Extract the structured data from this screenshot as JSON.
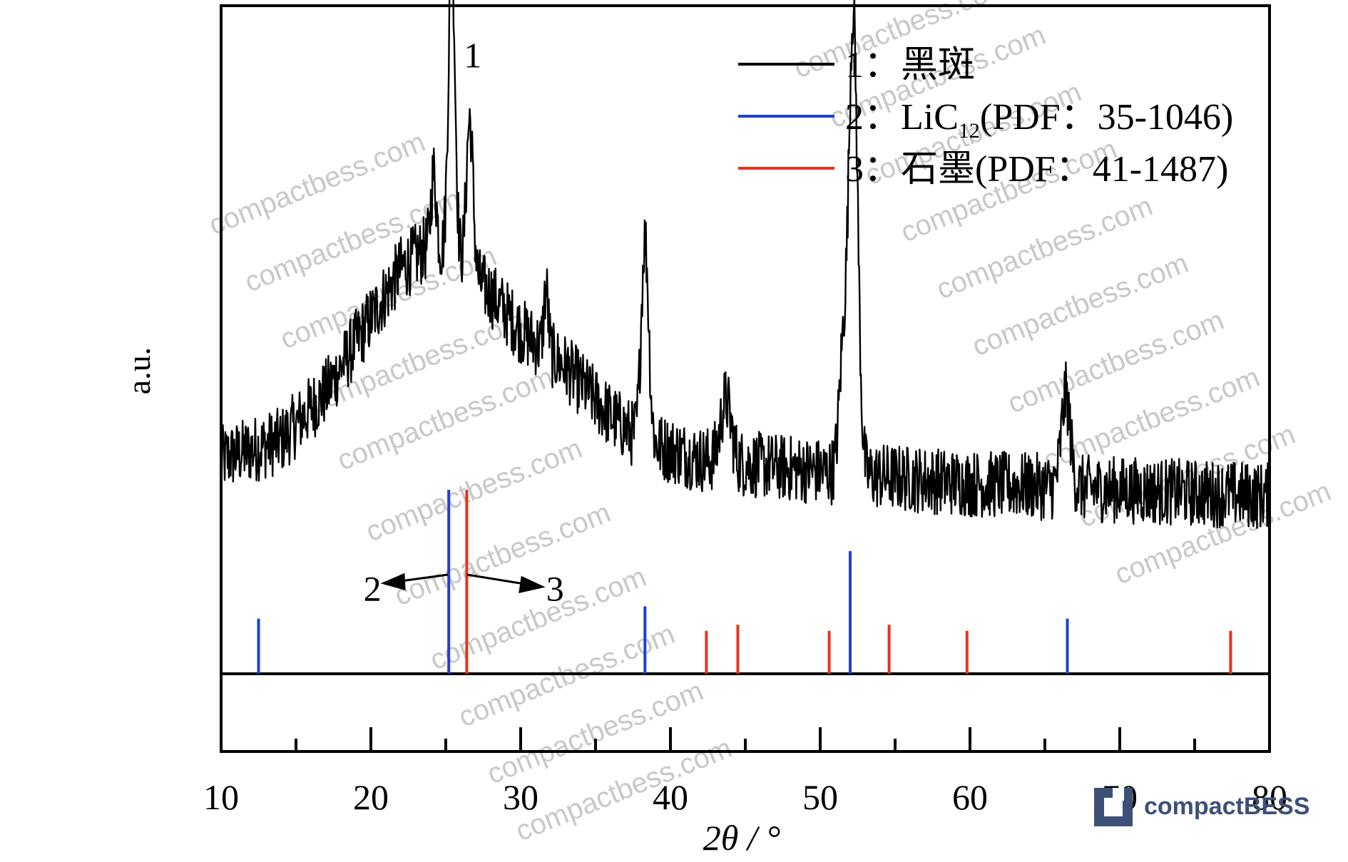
{
  "chart_data": {
    "type": "line",
    "title": "",
    "xlabel": "2θ / °",
    "ylabel": "a.u.",
    "xlim": [
      10,
      80
    ],
    "x_ticks": [
      "10",
      "20",
      "30",
      "40",
      "50",
      "60",
      "70",
      "80"
    ],
    "legend_position": "top-right",
    "series": [
      {
        "name": "1：黑斑",
        "color": "#000000",
        "baseline": [
          [
            10,
            0.35
          ],
          [
            14,
            0.38
          ],
          [
            17,
            0.46
          ],
          [
            20,
            0.58
          ],
          [
            22,
            0.66
          ],
          [
            24,
            0.7
          ],
          [
            26,
            0.67
          ],
          [
            28,
            0.62
          ],
          [
            30,
            0.56
          ],
          [
            33,
            0.5
          ],
          [
            36,
            0.42
          ],
          [
            38,
            0.38
          ],
          [
            42,
            0.35
          ],
          [
            50,
            0.33
          ],
          [
            60,
            0.31
          ],
          [
            70,
            0.3
          ],
          [
            80,
            0.29
          ]
        ],
        "peaks": [
          [
            25.4,
            0.5,
            0.22
          ],
          [
            26.6,
            0.25,
            0.22
          ],
          [
            24.2,
            0.12,
            0.18
          ],
          [
            31.7,
            0.1,
            0.15
          ],
          [
            38.3,
            0.33,
            0.25
          ],
          [
            43.7,
            0.1,
            0.35
          ],
          [
            52.2,
            0.75,
            0.3
          ],
          [
            51.5,
            0.18,
            0.25
          ],
          [
            66.4,
            0.15,
            0.3
          ]
        ],
        "noise": 0.055
      }
    ],
    "reference_sets": [
      {
        "name": "2：LiC",
        "name_sub": "12",
        "name_suffix": "(PDF：35-1046)",
        "color": "#1f3fd8",
        "lines": [
          [
            12.5,
            0.09
          ],
          [
            25.2,
            0.3
          ],
          [
            38.3,
            0.11
          ],
          [
            52.0,
            0.2
          ],
          [
            66.5,
            0.09
          ]
        ]
      },
      {
        "name": "3：石墨",
        "name_sub": "",
        "name_suffix": "(PDF：41-1487)",
        "color": "#e8321e",
        "lines": [
          [
            26.4,
            0.3
          ],
          [
            42.4,
            0.07
          ],
          [
            44.5,
            0.08
          ],
          [
            50.6,
            0.07
          ],
          [
            54.6,
            0.08
          ],
          [
            59.8,
            0.07
          ],
          [
            77.4,
            0.07
          ]
        ]
      }
    ],
    "annotations": [
      {
        "text": "1",
        "x": 26.8,
        "y": 1.01
      },
      {
        "text": "2",
        "x": 20.1,
        "y": 0.14
      },
      {
        "text": "3",
        "x": 32.3,
        "y": 0.14
      }
    ]
  },
  "watermark": {
    "text": "compactbess.com",
    "logo_text": "compactBESS"
  }
}
